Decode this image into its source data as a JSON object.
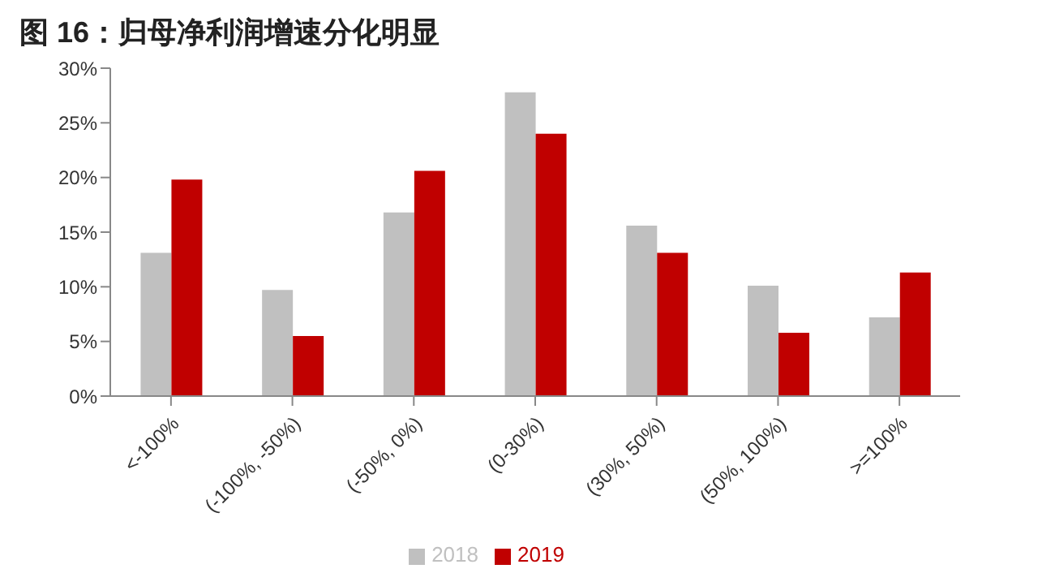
{
  "chart_data": {
    "type": "bar",
    "title": "图 16：归母净利润增速分化明显",
    "categories": [
      "<-100%",
      "(-100%, -50%)",
      "(-50%, 0%)",
      "(0-30%)",
      "(30%, 50%)",
      "(50%, 100%)",
      ">=100%"
    ],
    "series": [
      {
        "name": "2018",
        "color": "#c0c0c0",
        "values": [
          13.1,
          9.7,
          16.8,
          27.8,
          15.6,
          10.1,
          7.2
        ]
      },
      {
        "name": "2019",
        "color": "#c00000",
        "values": [
          19.8,
          5.5,
          20.6,
          24.0,
          13.1,
          5.8,
          11.3
        ]
      }
    ],
    "ylim": [
      0,
      30
    ],
    "yticks": [
      {
        "value": 0,
        "label": "0%"
      },
      {
        "value": 5,
        "label": "5%"
      },
      {
        "value": 10,
        "label": "10%"
      },
      {
        "value": 15,
        "label": "15%"
      },
      {
        "value": 20,
        "label": "20%"
      },
      {
        "value": 25,
        "label": "25%"
      },
      {
        "value": 30,
        "label": "30%"
      }
    ],
    "grid": false,
    "legend": "bottom"
  }
}
